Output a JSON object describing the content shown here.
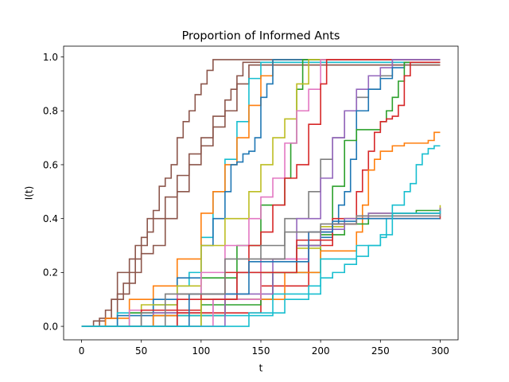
{
  "chart_data": {
    "type": "line",
    "title": "Proportion of Informed Ants",
    "xlabel": "t",
    "ylabel": "I(t)",
    "xlim": [
      -15,
      315
    ],
    "ylim": [
      -0.05,
      1.04
    ],
    "xticks": [
      0,
      50,
      100,
      150,
      200,
      250,
      300
    ],
    "yticks": [
      0.0,
      0.2,
      0.4,
      0.6,
      0.8,
      1.0
    ],
    "xtick_labels": [
      "0",
      "50",
      "100",
      "150",
      "200",
      "250",
      "300"
    ],
    "ytick_labels": [
      "0.0",
      "0.2",
      "0.4",
      "0.6",
      "0.8",
      "1.0"
    ],
    "grid": false,
    "legend": "none",
    "series": [
      {
        "color": "#8c564b",
        "x": [
          0,
          10,
          20,
          25,
          30,
          40,
          50,
          55,
          60,
          65,
          70,
          75,
          80,
          85,
          90,
          95,
          100,
          105,
          110,
          125,
          300
        ],
        "y": [
          0.0,
          0.02,
          0.06,
          0.1,
          0.2,
          0.25,
          0.33,
          0.4,
          0.43,
          0.52,
          0.55,
          0.6,
          0.7,
          0.76,
          0.8,
          0.86,
          0.9,
          0.95,
          0.99,
          0.99,
          0.99
        ]
      },
      {
        "color": "#8c564b",
        "x": [
          0,
          15,
          25,
          35,
          45,
          55,
          60,
          70,
          80,
          90,
          100,
          110,
          120,
          125,
          130,
          135,
          300
        ],
        "y": [
          0.0,
          0.03,
          0.1,
          0.16,
          0.3,
          0.35,
          0.4,
          0.48,
          0.56,
          0.64,
          0.7,
          0.78,
          0.84,
          0.88,
          0.93,
          0.98,
          0.98
        ]
      },
      {
        "color": "#8c564b",
        "x": [
          0,
          20,
          30,
          40,
          50,
          60,
          70,
          80,
          90,
          100,
          110,
          120,
          130,
          140,
          300
        ],
        "y": [
          0.0,
          0.03,
          0.12,
          0.2,
          0.27,
          0.3,
          0.4,
          0.5,
          0.6,
          0.67,
          0.74,
          0.8,
          0.9,
          0.97,
          0.97
        ]
      },
      {
        "color": "#17becf",
        "x": [
          0,
          30,
          60,
          80,
          90,
          100,
          110,
          120,
          130,
          140,
          150,
          300
        ],
        "y": [
          0.0,
          0.05,
          0.08,
          0.15,
          0.2,
          0.33,
          0.5,
          0.62,
          0.76,
          0.92,
          0.98,
          0.98
        ]
      },
      {
        "color": "#ff7f0e",
        "x": [
          0,
          20,
          40,
          60,
          80,
          100,
          110,
          120,
          130,
          140,
          150,
          160,
          300
        ],
        "y": [
          0.0,
          0.03,
          0.1,
          0.15,
          0.25,
          0.42,
          0.5,
          0.6,
          0.7,
          0.82,
          0.93,
          0.99,
          0.99
        ]
      },
      {
        "color": "#1f77b4",
        "x": [
          0,
          30,
          60,
          80,
          100,
          110,
          120,
          125,
          130,
          135,
          140,
          145,
          150,
          155,
          160,
          300
        ],
        "y": [
          0.0,
          0.04,
          0.1,
          0.18,
          0.3,
          0.4,
          0.5,
          0.6,
          0.61,
          0.64,
          0.65,
          0.7,
          0.85,
          0.9,
          0.99,
          0.99
        ]
      },
      {
        "color": "#2ca02c",
        "x": [
          0,
          40,
          80,
          100,
          130,
          150,
          170,
          175,
          180,
          185,
          300
        ],
        "y": [
          0.0,
          0.05,
          0.12,
          0.18,
          0.3,
          0.45,
          0.55,
          0.68,
          0.88,
          0.99,
          0.99
        ]
      },
      {
        "color": "#bcbd22",
        "x": [
          0,
          50,
          80,
          100,
          120,
          140,
          150,
          160,
          170,
          180,
          190,
          300
        ],
        "y": [
          0.0,
          0.08,
          0.15,
          0.3,
          0.4,
          0.5,
          0.6,
          0.7,
          0.77,
          0.9,
          0.99,
          0.99
        ]
      },
      {
        "color": "#e377c2",
        "x": [
          0,
          40,
          80,
          100,
          120,
          140,
          150,
          160,
          170,
          180,
          190,
          200,
          300
        ],
        "y": [
          0.0,
          0.06,
          0.12,
          0.2,
          0.3,
          0.4,
          0.48,
          0.55,
          0.68,
          0.8,
          0.88,
          0.99,
          0.99
        ]
      },
      {
        "color": "#d62728",
        "x": [
          0,
          50,
          100,
          120,
          140,
          150,
          160,
          170,
          180,
          190,
          200,
          205,
          300
        ],
        "y": [
          0.0,
          0.06,
          0.12,
          0.2,
          0.3,
          0.35,
          0.45,
          0.55,
          0.6,
          0.75,
          0.9,
          0.99,
          0.99
        ]
      },
      {
        "color": "#7f7f7f",
        "x": [
          0,
          50,
          100,
          130,
          150,
          170,
          190,
          200,
          210,
          220,
          230,
          240,
          250,
          260,
          300
        ],
        "y": [
          0.0,
          0.05,
          0.1,
          0.2,
          0.3,
          0.4,
          0.5,
          0.62,
          0.7,
          0.8,
          0.85,
          0.88,
          0.93,
          0.99,
          0.99
        ]
      },
      {
        "color": "#9467bd",
        "x": [
          0,
          60,
          110,
          150,
          180,
          200,
          210,
          220,
          230,
          240,
          250,
          260,
          300
        ],
        "y": [
          0.0,
          0.05,
          0.1,
          0.2,
          0.4,
          0.55,
          0.7,
          0.8,
          0.88,
          0.93,
          0.96,
          0.99,
          0.99
        ]
      },
      {
        "color": "#1f77b4",
        "x": [
          0,
          60,
          120,
          160,
          190,
          200,
          210,
          215,
          220,
          225,
          230,
          240,
          250,
          260,
          270,
          300
        ],
        "y": [
          0.0,
          0.04,
          0.1,
          0.2,
          0.3,
          0.33,
          0.38,
          0.45,
          0.5,
          0.62,
          0.8,
          0.88,
          0.92,
          0.96,
          0.98,
          0.98
        ]
      },
      {
        "color": "#2ca02c",
        "x": [
          0,
          60,
          120,
          160,
          200,
          210,
          220,
          230,
          240,
          250,
          255,
          260,
          265,
          270,
          300
        ],
        "y": [
          0.0,
          0.04,
          0.1,
          0.2,
          0.35,
          0.52,
          0.69,
          0.73,
          0.73,
          0.76,
          0.8,
          0.85,
          0.91,
          0.98,
          0.98
        ]
      },
      {
        "color": "#d62728",
        "x": [
          0,
          80,
          150,
          190,
          210,
          230,
          235,
          240,
          245,
          250,
          255,
          260,
          265,
          270,
          275,
          300
        ],
        "y": [
          0.0,
          0.05,
          0.15,
          0.3,
          0.4,
          0.5,
          0.58,
          0.65,
          0.72,
          0.76,
          0.77,
          0.78,
          0.82,
          0.93,
          0.98,
          0.98
        ]
      },
      {
        "color": "#ff7f0e",
        "x": [
          0,
          60,
          120,
          170,
          200,
          230,
          235,
          240,
          245,
          250,
          260,
          270,
          290,
          295,
          300
        ],
        "y": [
          0.0,
          0.04,
          0.1,
          0.2,
          0.28,
          0.35,
          0.45,
          0.58,
          0.62,
          0.65,
          0.67,
          0.68,
          0.69,
          0.72,
          0.72
        ]
      },
      {
        "color": "#17becf",
        "x": [
          0,
          80,
          160,
          200,
          230,
          250,
          255,
          260,
          270,
          275,
          280,
          285,
          290,
          295,
          300
        ],
        "y": [
          0.0,
          0.04,
          0.12,
          0.25,
          0.3,
          0.33,
          0.4,
          0.45,
          0.5,
          0.53,
          0.6,
          0.64,
          0.66,
          0.67,
          0.67
        ]
      },
      {
        "color": "#2ca02c",
        "x": [
          0,
          100,
          150,
          180,
          200,
          220,
          240,
          260,
          280,
          300
        ],
        "y": [
          0.0,
          0.08,
          0.2,
          0.3,
          0.34,
          0.38,
          0.41,
          0.42,
          0.43,
          0.44
        ]
      },
      {
        "color": "#bcbd22",
        "x": [
          0,
          100,
          150,
          180,
          200,
          220,
          240,
          300
        ],
        "y": [
          0.0,
          0.1,
          0.2,
          0.29,
          0.37,
          0.4,
          0.42,
          0.45
        ]
      },
      {
        "color": "#9467bd",
        "x": [
          0,
          120,
          160,
          180,
          200,
          220,
          240,
          300
        ],
        "y": [
          0.0,
          0.12,
          0.25,
          0.3,
          0.36,
          0.4,
          0.42,
          0.44
        ]
      },
      {
        "color": "#e377c2",
        "x": [
          0,
          110,
          150,
          190,
          210,
          230,
          300
        ],
        "y": [
          0.0,
          0.1,
          0.25,
          0.35,
          0.38,
          0.41,
          0.42
        ]
      },
      {
        "color": "#d62728",
        "x": [
          0,
          80,
          130,
          180,
          210,
          230,
          300
        ],
        "y": [
          0.0,
          0.1,
          0.2,
          0.32,
          0.38,
          0.4,
          0.41
        ]
      },
      {
        "color": "#1f77b4",
        "x": [
          0,
          90,
          140,
          190,
          210,
          230,
          300
        ],
        "y": [
          0.0,
          0.12,
          0.24,
          0.35,
          0.39,
          0.4,
          0.4
        ]
      },
      {
        "color": "#7f7f7f",
        "x": [
          0,
          70,
          120,
          170,
          200,
          230,
          300
        ],
        "y": [
          0.0,
          0.12,
          0.25,
          0.35,
          0.38,
          0.41,
          0.42
        ]
      },
      {
        "color": "#17becf",
        "x": [
          0,
          140,
          170,
          190,
          200,
          210,
          220,
          230,
          240,
          250,
          260,
          300
        ],
        "y": [
          0.0,
          0.05,
          0.1,
          0.15,
          0.18,
          0.2,
          0.23,
          0.26,
          0.3,
          0.34,
          0.42,
          0.43
        ]
      }
    ]
  }
}
